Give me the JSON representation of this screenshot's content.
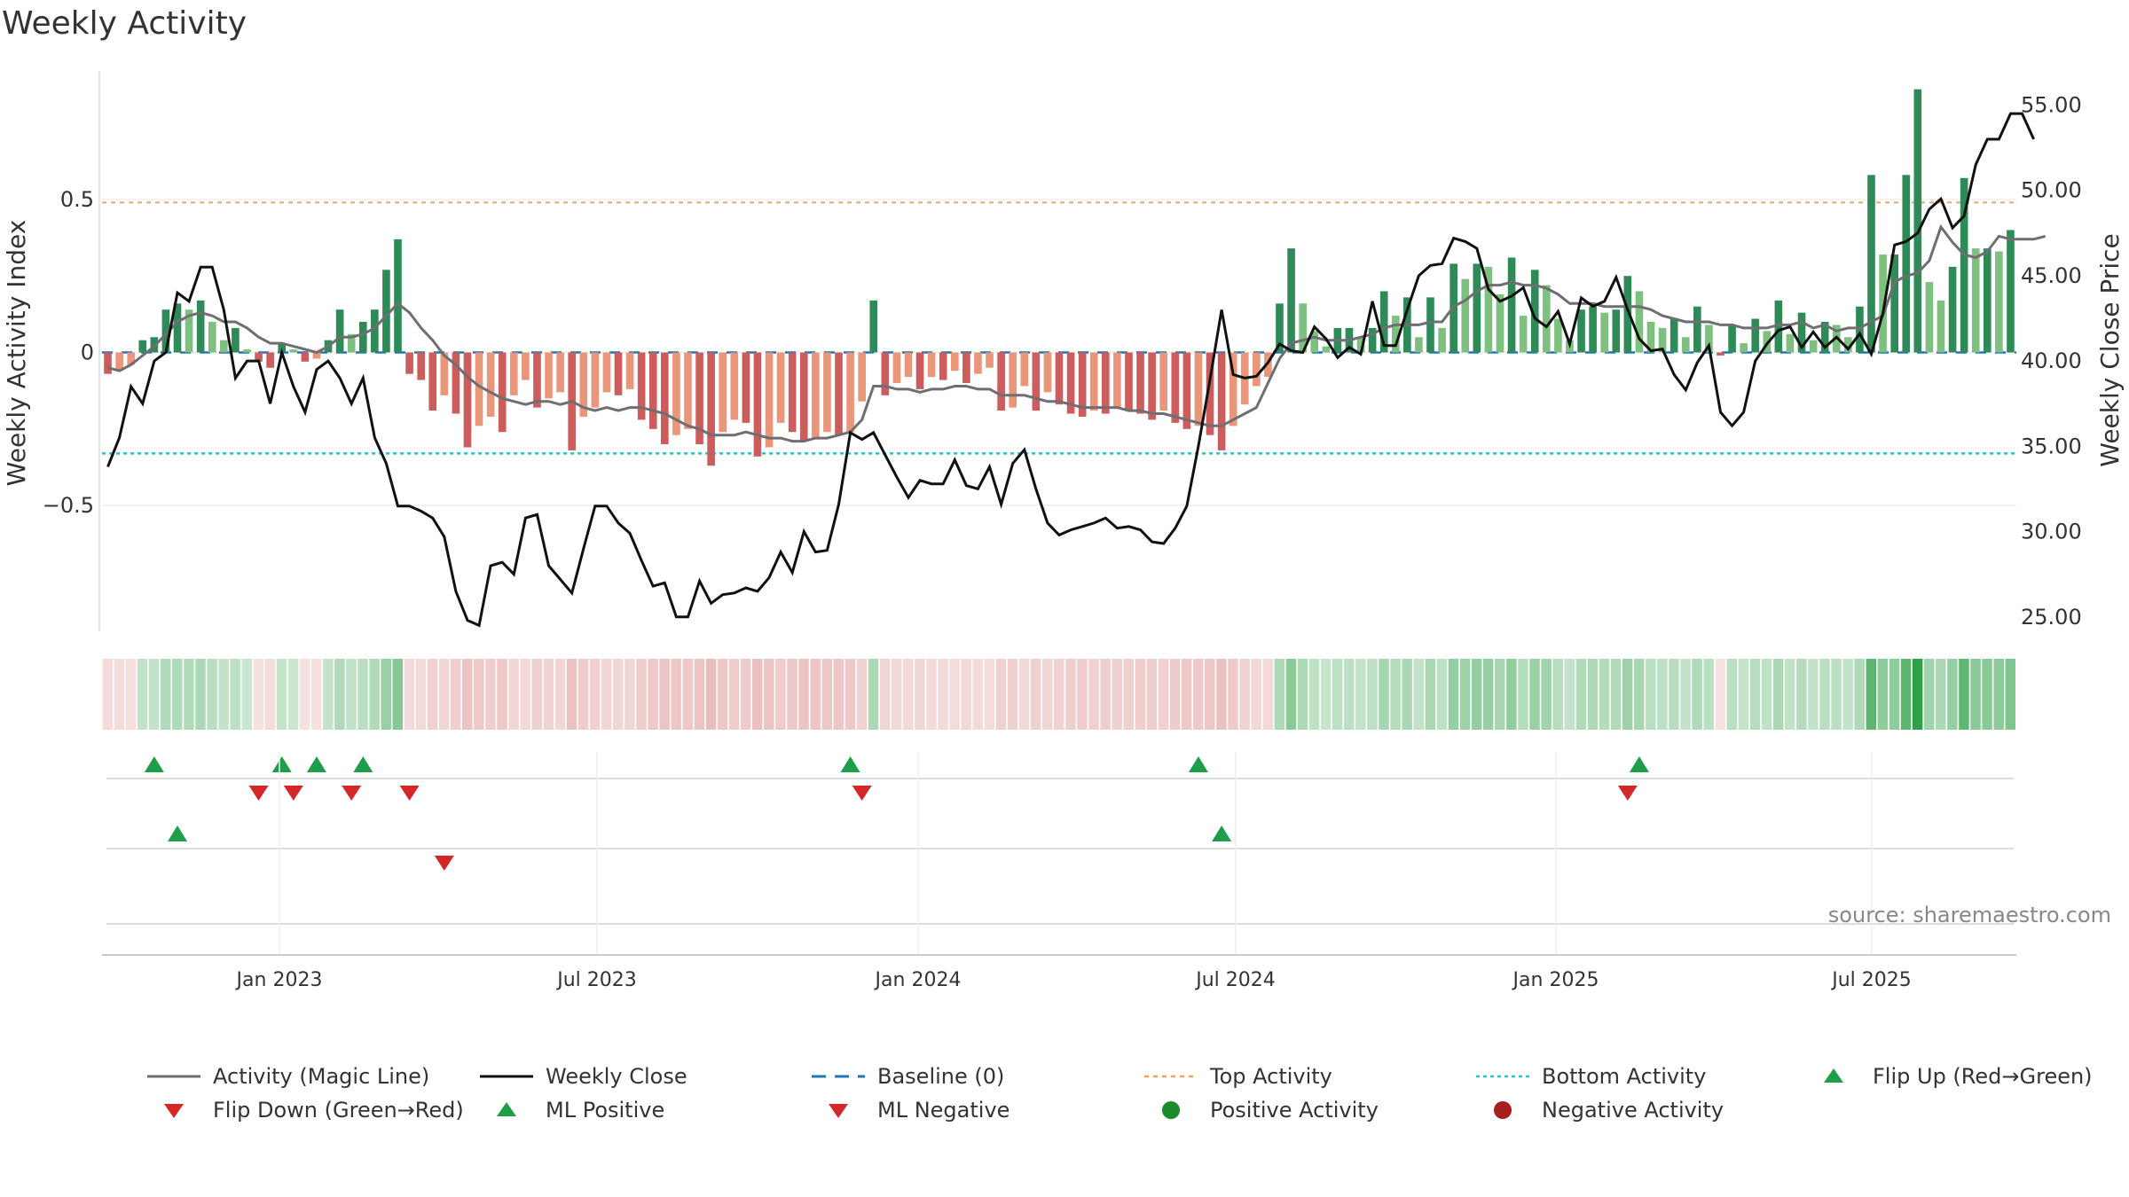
{
  "title": "Weekly Activity",
  "source": "source: sharemaestro.com",
  "colors": {
    "pos_strong": "#2e8b57",
    "pos_light": "#7dc07f",
    "neg_strong": "#cd5c5c",
    "neg_light": "#e9967a",
    "magic_line": "#6e6e73",
    "close_line": "#111111",
    "baseline": "#1f77b4",
    "top_line": "#f4a460",
    "bottom_line": "#20c5d0",
    "marker_up": "#1e9e48",
    "marker_down": "#d62728"
  },
  "chart_data": {
    "type": "bar",
    "ylabel_left": "Weekly Activity Index",
    "ylabel_right": "Weekly Close Price",
    "left_ticks": [
      {
        "value": 0.5,
        "label": "0.5"
      },
      {
        "value": 0,
        "label": "0"
      },
      {
        "value": -0.5,
        "label": "−0.5"
      }
    ],
    "right_ticks": [
      {
        "value": 55,
        "label": "55.00"
      },
      {
        "value": 50,
        "label": "50.00"
      },
      {
        "value": 45,
        "label": "45.00"
      },
      {
        "value": 40,
        "label": "40.00"
      },
      {
        "value": 35,
        "label": "35.00"
      },
      {
        "value": 30,
        "label": "30.00"
      },
      {
        "value": 25,
        "label": "25.00"
      }
    ],
    "ylim_left": [
      -0.92,
      0.92
    ],
    "ylim_right": [
      24.0,
      57.0
    ],
    "x_dates": [
      "Jan 2023",
      "Jul 2023",
      "Jan 2024",
      "Jul 2024",
      "Jan 2025",
      "Jul 2025"
    ],
    "top_activity": 0.49,
    "bottom_activity": -0.33,
    "activity": [
      -0.07,
      -0.06,
      -0.04,
      0.04,
      0.05,
      0.14,
      0.16,
      0.14,
      0.17,
      0.1,
      0.04,
      0.08,
      0.01,
      -0.03,
      -0.05,
      0.03,
      0.01,
      -0.03,
      -0.02,
      0.04,
      0.14,
      0.06,
      0.1,
      0.14,
      0.27,
      0.37,
      -0.07,
      -0.09,
      -0.19,
      -0.14,
      -0.2,
      -0.31,
      -0.24,
      -0.21,
      -0.26,
      -0.14,
      -0.09,
      -0.18,
      -0.15,
      -0.13,
      -0.32,
      -0.21,
      -0.18,
      -0.13,
      -0.14,
      -0.12,
      -0.22,
      -0.25,
      -0.3,
      -0.27,
      -0.25,
      -0.3,
      -0.37,
      -0.26,
      -0.22,
      -0.23,
      -0.34,
      -0.31,
      -0.23,
      -0.26,
      -0.29,
      -0.28,
      -0.26,
      -0.27,
      -0.26,
      -0.16,
      0.17,
      -0.14,
      -0.1,
      -0.08,
      -0.12,
      -0.08,
      -0.09,
      -0.06,
      -0.1,
      -0.07,
      -0.05,
      -0.19,
      -0.18,
      -0.11,
      -0.19,
      -0.13,
      -0.17,
      -0.2,
      -0.21,
      -0.19,
      -0.2,
      -0.18,
      -0.19,
      -0.2,
      -0.22,
      -0.19,
      -0.23,
      -0.25,
      -0.24,
      -0.27,
      -0.32,
      -0.24,
      -0.17,
      -0.11,
      -0.08,
      0.16,
      0.34,
      0.16,
      0.07,
      0.02,
      0.08,
      0.08,
      0.05,
      0.08,
      0.2,
      0.12,
      0.18,
      0.05,
      0.18,
      0.08,
      0.29,
      0.24,
      0.29,
      0.28,
      0.19,
      0.31,
      0.12,
      0.27,
      0.22,
      0.11,
      0.04,
      0.14,
      0.15,
      0.13,
      0.14,
      0.25,
      0.2,
      0.1,
      0.08,
      0.11,
      0.05,
      0.15,
      0.09,
      -0.01,
      0.09,
      0.03,
      0.11,
      0.07,
      0.17,
      0.06,
      0.13,
      0.04,
      0.1,
      0.09,
      0.05,
      0.15,
      0.58,
      0.32,
      0.32,
      0.58,
      0.86,
      0.23,
      0.17,
      0.28,
      0.57,
      0.34,
      0.34,
      0.33,
      0.4
    ],
    "magic_line": [
      -0.05,
      -0.06,
      -0.04,
      -0.01,
      0.02,
      0.06,
      0.1,
      0.12,
      0.13,
      0.12,
      0.1,
      0.1,
      0.08,
      0.05,
      0.03,
      0.03,
      0.02,
      0.01,
      0.0,
      0.02,
      0.05,
      0.05,
      0.06,
      0.08,
      0.12,
      0.16,
      0.13,
      0.08,
      0.04,
      -0.01,
      -0.04,
      -0.08,
      -0.11,
      -0.13,
      -0.15,
      -0.16,
      -0.17,
      -0.16,
      -0.16,
      -0.17,
      -0.16,
      -0.18,
      -0.19,
      -0.18,
      -0.19,
      -0.18,
      -0.18,
      -0.19,
      -0.2,
      -0.22,
      -0.24,
      -0.25,
      -0.27,
      -0.27,
      -0.27,
      -0.26,
      -0.27,
      -0.28,
      -0.28,
      -0.29,
      -0.29,
      -0.28,
      -0.28,
      -0.27,
      -0.26,
      -0.22,
      -0.11,
      -0.11,
      -0.12,
      -0.12,
      -0.13,
      -0.12,
      -0.12,
      -0.11,
      -0.11,
      -0.12,
      -0.12,
      -0.14,
      -0.14,
      -0.14,
      -0.15,
      -0.16,
      -0.16,
      -0.17,
      -0.18,
      -0.18,
      -0.18,
      -0.18,
      -0.19,
      -0.19,
      -0.2,
      -0.2,
      -0.21,
      -0.22,
      -0.23,
      -0.24,
      -0.24,
      -0.22,
      -0.2,
      -0.18,
      -0.1,
      -0.02,
      0.03,
      0.04,
      0.05,
      0.04,
      0.04,
      0.04,
      0.05,
      0.06,
      0.08,
      0.09,
      0.09,
      0.09,
      0.1,
      0.1,
      0.15,
      0.17,
      0.2,
      0.22,
      0.22,
      0.23,
      0.22,
      0.22,
      0.21,
      0.19,
      0.16,
      0.16,
      0.16,
      0.15,
      0.15,
      0.15,
      0.15,
      0.14,
      0.12,
      0.11,
      0.1,
      0.1,
      0.1,
      0.09,
      0.09,
      0.08,
      0.08,
      0.08,
      0.09,
      0.09,
      0.1,
      0.08,
      0.09,
      0.07,
      0.08,
      0.08,
      0.1,
      0.12,
      0.23,
      0.25,
      0.26,
      0.3,
      0.41,
      0.36,
      0.32,
      0.31,
      0.33,
      0.38,
      0.37,
      0.37,
      0.37,
      0.38
    ],
    "weekly_close": [
      33.8,
      35.5,
      38.5,
      37.5,
      40.0,
      40.5,
      44.0,
      43.5,
      45.5,
      45.5,
      43.0,
      39.0,
      40.0,
      40.0,
      37.5,
      40.5,
      38.5,
      37.0,
      39.5,
      40.0,
      39.0,
      37.5,
      39.0,
      35.5,
      34.0,
      31.5,
      31.5,
      31.2,
      30.8,
      29.7,
      26.5,
      24.8,
      24.5,
      28.0,
      28.2,
      27.5,
      30.8,
      31.0,
      28.0,
      27.2,
      26.4,
      29.0,
      31.5,
      31.5,
      30.5,
      29.9,
      28.3,
      26.8,
      27.0,
      25.0,
      25.0,
      27.1,
      25.8,
      26.3,
      26.4,
      26.7,
      26.5,
      27.3,
      28.8,
      27.6,
      30.0,
      28.8,
      28.9,
      31.6,
      35.8,
      35.4,
      35.8,
      34.5,
      33.2,
      32.0,
      33.0,
      32.8,
      32.8,
      34.2,
      32.7,
      32.5,
      33.8,
      31.6,
      34.0,
      34.8,
      32.5,
      30.5,
      29.8,
      30.1,
      30.3,
      30.5,
      30.8,
      30.2,
      30.3,
      30.1,
      29.4,
      29.3,
      30.2,
      31.5,
      35.0,
      38.9,
      43.0,
      39.2,
      39.0,
      39.1,
      39.9,
      41.0,
      40.6,
      40.5,
      42.0,
      41.3,
      40.2,
      40.8,
      40.4,
      43.5,
      40.9,
      40.9,
      43.0,
      45.0,
      45.6,
      45.7,
      47.2,
      47.0,
      46.6,
      44.2,
      43.5,
      43.8,
      44.3,
      42.5,
      42.0,
      42.9,
      41.0,
      43.7,
      43.2,
      43.5,
      44.9,
      43.0,
      41.3,
      40.6,
      40.7,
      39.2,
      38.3,
      39.9,
      40.9,
      37.0,
      36.2,
      37.0,
      40.0,
      41.0,
      41.8,
      42.0,
      40.8,
      41.7,
      40.8,
      41.4,
      40.7,
      41.6,
      40.4,
      42.8,
      46.8,
      47.0,
      47.5,
      48.9,
      49.5,
      47.8,
      48.5,
      51.5,
      53.0,
      53.0,
      54.5,
      54.5,
      53.0
    ]
  },
  "markers": {
    "flip_up": [
      4,
      15,
      18,
      22,
      64,
      94,
      132
    ],
    "flip_down": [
      13,
      16,
      21,
      26,
      65,
      131
    ],
    "ml_positive": [
      6,
      96
    ],
    "ml_negative": [
      29
    ]
  },
  "legend": [
    {
      "key": "magic",
      "label": "Activity (Magic Line)"
    },
    {
      "key": "close",
      "label": "Weekly Close"
    },
    {
      "key": "baseline",
      "label": "Baseline (0)"
    },
    {
      "key": "top",
      "label": "Top Activity"
    },
    {
      "key": "bottom",
      "label": "Bottom Activity"
    },
    {
      "key": "flipup",
      "label": "Flip Up (Red→Green)"
    },
    {
      "key": "flipdown",
      "label": "Flip Down (Green→Red)"
    },
    {
      "key": "mlpos",
      "label": "ML Positive"
    },
    {
      "key": "mlneg",
      "label": "ML Negative"
    },
    {
      "key": "posact",
      "label": "Positive Activity"
    },
    {
      "key": "negact",
      "label": "Negative Activity"
    }
  ]
}
